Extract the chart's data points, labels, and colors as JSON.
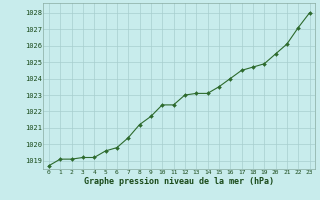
{
  "x": [
    0,
    1,
    2,
    3,
    4,
    5,
    6,
    7,
    8,
    9,
    10,
    11,
    12,
    13,
    14,
    15,
    16,
    17,
    18,
    19,
    20,
    21,
    22,
    23
  ],
  "y": [
    1018.7,
    1019.1,
    1019.1,
    1019.2,
    1019.2,
    1019.6,
    1019.8,
    1020.4,
    1021.2,
    1021.7,
    1022.4,
    1022.4,
    1023.0,
    1023.1,
    1023.1,
    1023.5,
    1024.0,
    1024.5,
    1024.7,
    1024.9,
    1025.5,
    1026.1,
    1027.1,
    1028.0
  ],
  "line_color": "#2d6a2d",
  "marker_color": "#2d6a2d",
  "bg_color": "#c8ecec",
  "grid_color": "#a8cece",
  "xlabel": "Graphe pression niveau de la mer (hPa)",
  "xlabel_color": "#1a4a1a",
  "tick_label_color": "#1a4a1a",
  "ylim_min": 1018.5,
  "ylim_max": 1028.6,
  "xtick_labels": [
    "0",
    "1",
    "2",
    "3",
    "4",
    "5",
    "6",
    "7",
    "8",
    "9",
    "10",
    "11",
    "12",
    "13",
    "14",
    "15",
    "16",
    "17",
    "18",
    "19",
    "20",
    "21",
    "22",
    "23"
  ],
  "ytick_labels": [
    "1019",
    "1020",
    "1021",
    "1022",
    "1023",
    "1024",
    "1025",
    "1026",
    "1027",
    "1028"
  ],
  "ytick_values": [
    1019,
    1020,
    1021,
    1022,
    1023,
    1024,
    1025,
    1026,
    1027,
    1028
  ]
}
